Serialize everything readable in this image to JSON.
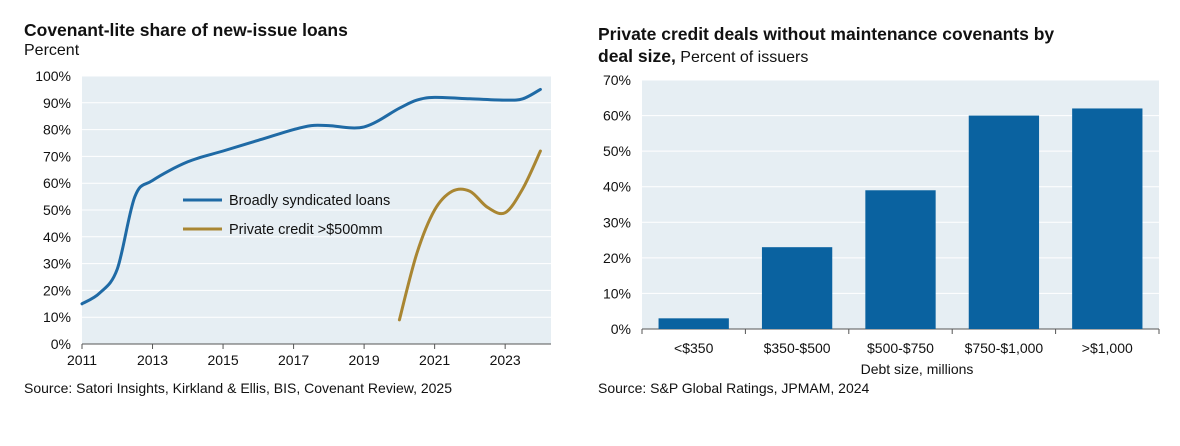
{
  "chart_data": [
    {
      "type": "line",
      "title": "Covenant-lite share of new-issue loans",
      "subtitle": "Percent",
      "xlim": [
        2011,
        2024.3
      ],
      "ylim": [
        0,
        100
      ],
      "x_ticks": [
        "2011",
        "2013",
        "2015",
        "2017",
        "2019",
        "2021",
        "2023"
      ],
      "x_tick_values": [
        2011,
        2013,
        2015,
        2017,
        2019,
        2021,
        2023
      ],
      "y_ticks": [
        "0%",
        "10%",
        "20%",
        "30%",
        "40%",
        "50%",
        "60%",
        "70%",
        "80%",
        "90%",
        "100%"
      ],
      "y_tick_values": [
        0,
        10,
        20,
        30,
        40,
        50,
        60,
        70,
        80,
        90,
        100
      ],
      "legend": "center",
      "series": [
        {
          "name": "Broadly syndicated loans",
          "color": "#1f6aa5",
          "x": [
            2011,
            2011.5,
            2012,
            2012.5,
            2013,
            2014,
            2015,
            2016,
            2017,
            2017.5,
            2018,
            2019,
            2020,
            2020.5,
            2021,
            2022,
            2023,
            2023.5,
            2024
          ],
          "y": [
            15,
            19,
            28,
            55,
            61,
            68,
            72,
            76,
            80,
            81.5,
            81.5,
            81,
            88,
            91,
            92,
            91.5,
            91,
            91.5,
            95
          ]
        },
        {
          "name": "Private credit >$500mm",
          "color": "#a98632",
          "x": [
            2020,
            2020.5,
            2021,
            2021.5,
            2022,
            2022.5,
            2023,
            2023.5,
            2024
          ],
          "y": [
            9,
            34,
            50,
            57,
            57,
            51,
            49,
            58,
            72
          ]
        }
      ],
      "source": "Source: Satori Insights, Kirkland & Ellis, BIS, Covenant Review, 2025"
    },
    {
      "type": "bar",
      "title_bold": "Private credit deals without maintenance covenants by",
      "title_bold_2": "deal size,",
      "title_rest": "Percent of issuers",
      "categories": [
        "<$350",
        "$350-$500",
        "$500-$750",
        "$750-$1,000",
        ">$1,000"
      ],
      "values": [
        3,
        23,
        39,
        60,
        62
      ],
      "xlabel": "Debt size, millions",
      "ylim": [
        0,
        70
      ],
      "y_ticks": [
        "0%",
        "10%",
        "20%",
        "30%",
        "40%",
        "50%",
        "60%",
        "70%"
      ],
      "y_tick_values": [
        0,
        10,
        20,
        30,
        40,
        50,
        60,
        70
      ],
      "bar_color": "#0a62a0",
      "source": "Source: S&P Global Ratings, JPMAM, 2024"
    }
  ],
  "colors": {
    "plot_bg": "#e6eef3",
    "grid": "#ffffff"
  }
}
